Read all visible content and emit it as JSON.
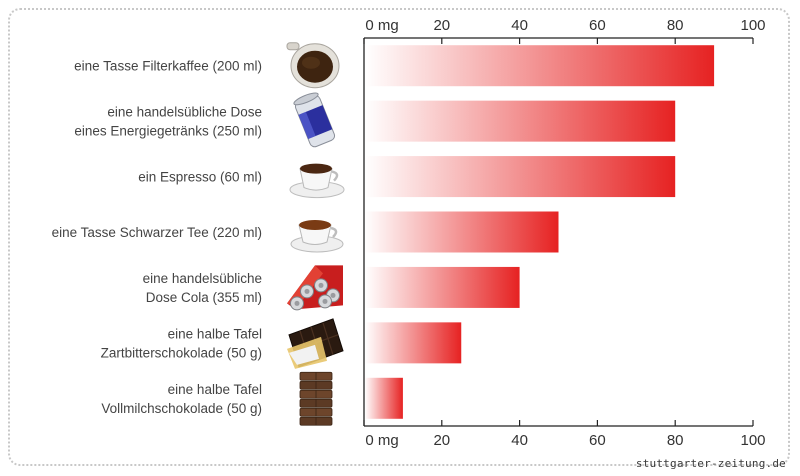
{
  "chart_data": {
    "type": "bar",
    "orientation": "horizontal",
    "categories": [
      [
        "eine Tasse Filterkaffee (200 ml)"
      ],
      [
        "eine handelsübliche Dose",
        "eines Energiegetränks (250 ml)"
      ],
      [
        "ein Espresso (60 ml)"
      ],
      [
        "eine Tasse Schwarzer Tee (220 ml)"
      ],
      [
        "eine handelsübliche",
        "Dose Cola (355 ml)"
      ],
      [
        "eine halbe Tafel",
        "Zartbitterschokolade (50 g)"
      ],
      [
        "eine halbe Tafel",
        "Vollmilchschokolade (50 g)"
      ]
    ],
    "values": [
      90,
      80,
      80,
      50,
      40,
      25,
      10
    ],
    "x_ticks": [
      "0 mg",
      "20",
      "40",
      "60",
      "80",
      "100"
    ],
    "xlim": [
      0,
      100
    ],
    "axis_top_and_bottom": true,
    "grid": false,
    "bar_gradient": {
      "from": "#ffffff",
      "to": "#e62222"
    },
    "icons": [
      "coffee-cup-top-icon",
      "energy-drink-can-icon",
      "espresso-cup-icon",
      "tea-cup-icon",
      "cola-cans-icon",
      "dark-chocolate-icon",
      "milk-chocolate-icon"
    ]
  },
  "credit": "stuttgarter-zeitung.de"
}
